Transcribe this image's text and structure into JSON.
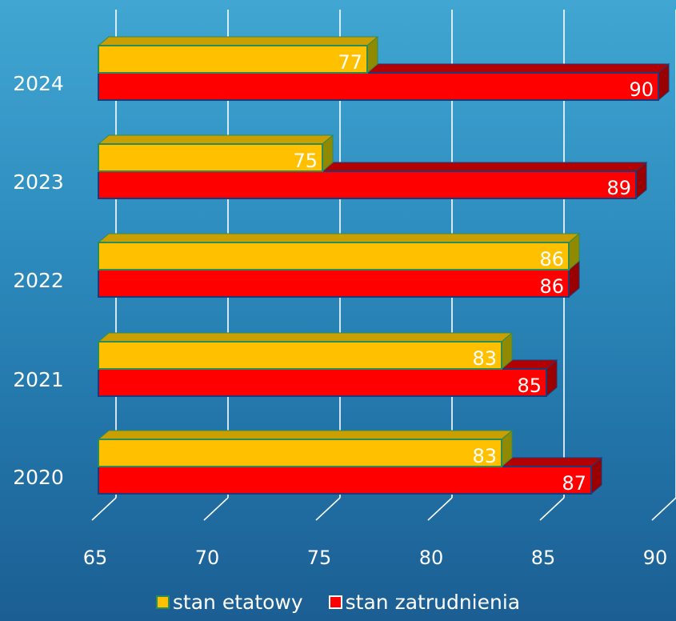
{
  "chart_data": {
    "type": "bar",
    "orientation": "horizontal",
    "style": "3d",
    "categories": [
      "2024",
      "2023",
      "2022",
      "2021",
      "2020"
    ],
    "series": [
      {
        "name": "stan etatowy",
        "values": [
          77,
          75,
          86,
          83,
          83
        ],
        "color": "#ffc000"
      },
      {
        "name": "stan zatrudnienia",
        "values": [
          90,
          89,
          86,
          85,
          87
        ],
        "color": "#ff0000"
      }
    ],
    "xlim": [
      65,
      90
    ],
    "xticks": [
      "65",
      "70",
      "75",
      "80",
      "85",
      "90"
    ],
    "grid": true,
    "data_labels": true,
    "legend_position": "bottom"
  },
  "legend": {
    "series_1": "stan etatowy",
    "series_2": "stan zatrudnienia"
  },
  "colors": {
    "background": "#2a84b8",
    "series_1": "#ffc000",
    "series_2": "#ff0000",
    "label_text": "#ffffff"
  }
}
